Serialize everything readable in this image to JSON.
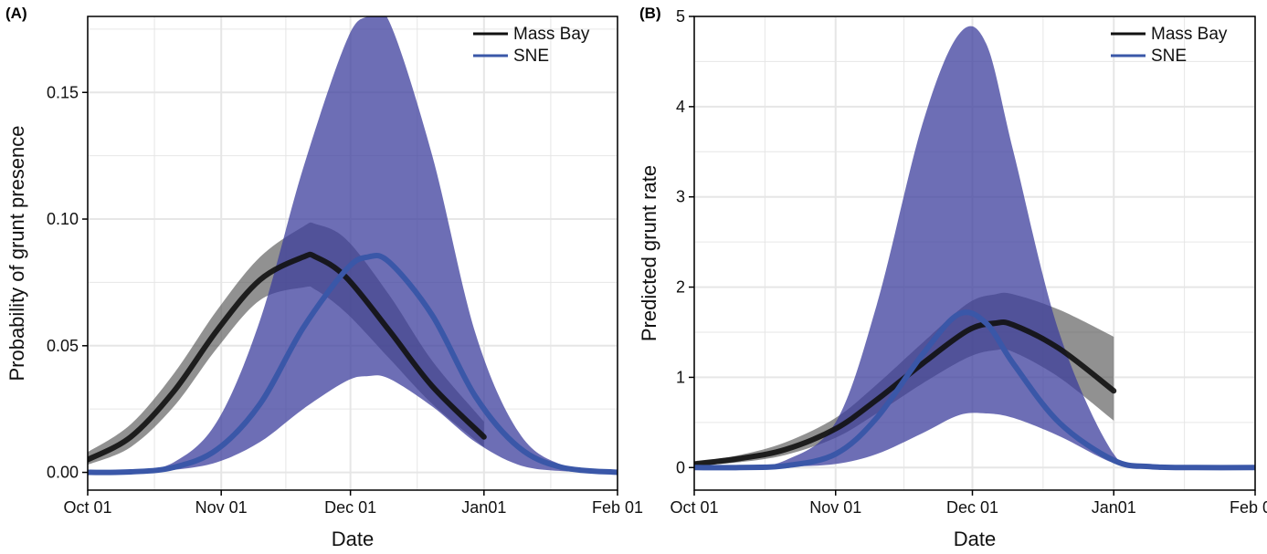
{
  "colors": {
    "mass_bay_line": "#111111",
    "mass_bay_band": "#4d4d4d",
    "sne_line": "#3a57a8",
    "sne_band": "#3c3e9c",
    "grid": "#e6e6e6"
  },
  "chart_data": [
    {
      "type": "line",
      "panel_label": "(A)",
      "xlabel": "Date",
      "ylabel": "Probability of grunt presence",
      "xlim": [
        0,
        123
      ],
      "ylim": [
        -0.007,
        0.18
      ],
      "x_ticks": [
        {
          "value": 0,
          "label": "Oct 01"
        },
        {
          "value": 31,
          "label": "Nov 01"
        },
        {
          "value": 61,
          "label": "Dec 01"
        },
        {
          "value": 92,
          "label": "Jan01"
        },
        {
          "value": 123,
          "label": "Feb 01"
        }
      ],
      "y_ticks": [
        {
          "value": 0,
          "label": "0.00"
        },
        {
          "value": 0.05,
          "label": "0.05"
        },
        {
          "value": 0.1,
          "label": "0.10"
        },
        {
          "value": 0.15,
          "label": "0.15"
        }
      ],
      "grid": true,
      "legend": {
        "position": "top-right",
        "entries": [
          "Mass Bay",
          "SNE"
        ]
      },
      "x_unit": "days since Oct 01",
      "series": [
        {
          "name": "Mass Bay",
          "x": [
            0,
            10,
            20,
            30,
            40,
            50,
            53,
            60,
            70,
            80,
            92
          ],
          "y": [
            0.005,
            0.014,
            0.032,
            0.056,
            0.076,
            0.085,
            0.085,
            0.077,
            0.056,
            0.034,
            0.014
          ],
          "lower": [
            0.003,
            0.01,
            0.026,
            0.049,
            0.068,
            0.073,
            0.072,
            0.063,
            0.045,
            0.027,
            0.01
          ],
          "upper": [
            0.008,
            0.019,
            0.039,
            0.064,
            0.085,
            0.097,
            0.098,
            0.092,
            0.07,
            0.044,
            0.02
          ]
        },
        {
          "name": "SNE",
          "x": [
            0,
            10,
            20,
            30,
            40,
            50,
            60,
            65,
            70,
            80,
            90,
            100,
            110,
            123
          ],
          "y": [
            0.0,
            0.0002,
            0.002,
            0.009,
            0.027,
            0.057,
            0.08,
            0.085,
            0.083,
            0.062,
            0.03,
            0.01,
            0.002,
            0.0
          ],
          "lower": [
            0.0,
            0.0001,
            0.001,
            0.004,
            0.012,
            0.025,
            0.036,
            0.038,
            0.037,
            0.026,
            0.012,
            0.003,
            0.0005,
            0.0
          ],
          "upper": [
            0.0,
            0.0005,
            0.004,
            0.02,
            0.06,
            0.12,
            0.17,
            0.18,
            0.178,
            0.125,
            0.055,
            0.016,
            0.003,
            0.0
          ]
        }
      ]
    },
    {
      "type": "line",
      "panel_label": "(B)",
      "xlabel": "Date",
      "ylabel": "Predicted grunt rate",
      "xlim": [
        0,
        123
      ],
      "ylim": [
        -0.25,
        5.0
      ],
      "x_ticks": [
        {
          "value": 0,
          "label": "Oct 01"
        },
        {
          "value": 31,
          "label": "Nov 01"
        },
        {
          "value": 61,
          "label": "Dec 01"
        },
        {
          "value": 92,
          "label": "Jan01"
        },
        {
          "value": 123,
          "label": "Feb 01"
        }
      ],
      "y_ticks": [
        {
          "value": 0,
          "label": "0"
        },
        {
          "value": 1,
          "label": "1"
        },
        {
          "value": 2,
          "label": "2"
        },
        {
          "value": 3,
          "label": "3"
        },
        {
          "value": 4,
          "label": "4"
        },
        {
          "value": 5,
          "label": "5"
        }
      ],
      "grid": true,
      "legend": {
        "position": "top-right",
        "entries": [
          "Mass Bay",
          "SNE"
        ]
      },
      "x_unit": "days since Oct 01",
      "series": [
        {
          "name": "Mass Bay",
          "x": [
            0,
            10,
            20,
            31,
            40,
            50,
            60,
            66,
            70,
            80,
            92
          ],
          "y": [
            0.04,
            0.1,
            0.2,
            0.43,
            0.75,
            1.15,
            1.52,
            1.6,
            1.58,
            1.32,
            0.85
          ],
          "lower": [
            0.02,
            0.06,
            0.14,
            0.33,
            0.6,
            0.93,
            1.22,
            1.3,
            1.28,
            1.0,
            0.52
          ],
          "upper": [
            0.06,
            0.14,
            0.28,
            0.55,
            0.92,
            1.38,
            1.82,
            1.92,
            1.92,
            1.75,
            1.45
          ]
        },
        {
          "name": "SNE",
          "x": [
            0,
            10,
            20,
            31,
            40,
            50,
            58,
            64,
            70,
            80,
            92,
            100,
            110,
            123
          ],
          "y": [
            0.0,
            0.001,
            0.02,
            0.15,
            0.55,
            1.25,
            1.7,
            1.6,
            1.15,
            0.5,
            0.08,
            0.01,
            0.0,
            0.0
          ],
          "lower": [
            0.0,
            0.001,
            0.01,
            0.04,
            0.15,
            0.38,
            0.58,
            0.6,
            0.55,
            0.35,
            0.05,
            0.005,
            0.0,
            0.0
          ],
          "upper": [
            0.0,
            0.01,
            0.08,
            0.5,
            1.8,
            3.8,
            4.8,
            4.7,
            3.5,
            1.5,
            0.15,
            0.02,
            0.0,
            0.0
          ]
        }
      ]
    }
  ]
}
